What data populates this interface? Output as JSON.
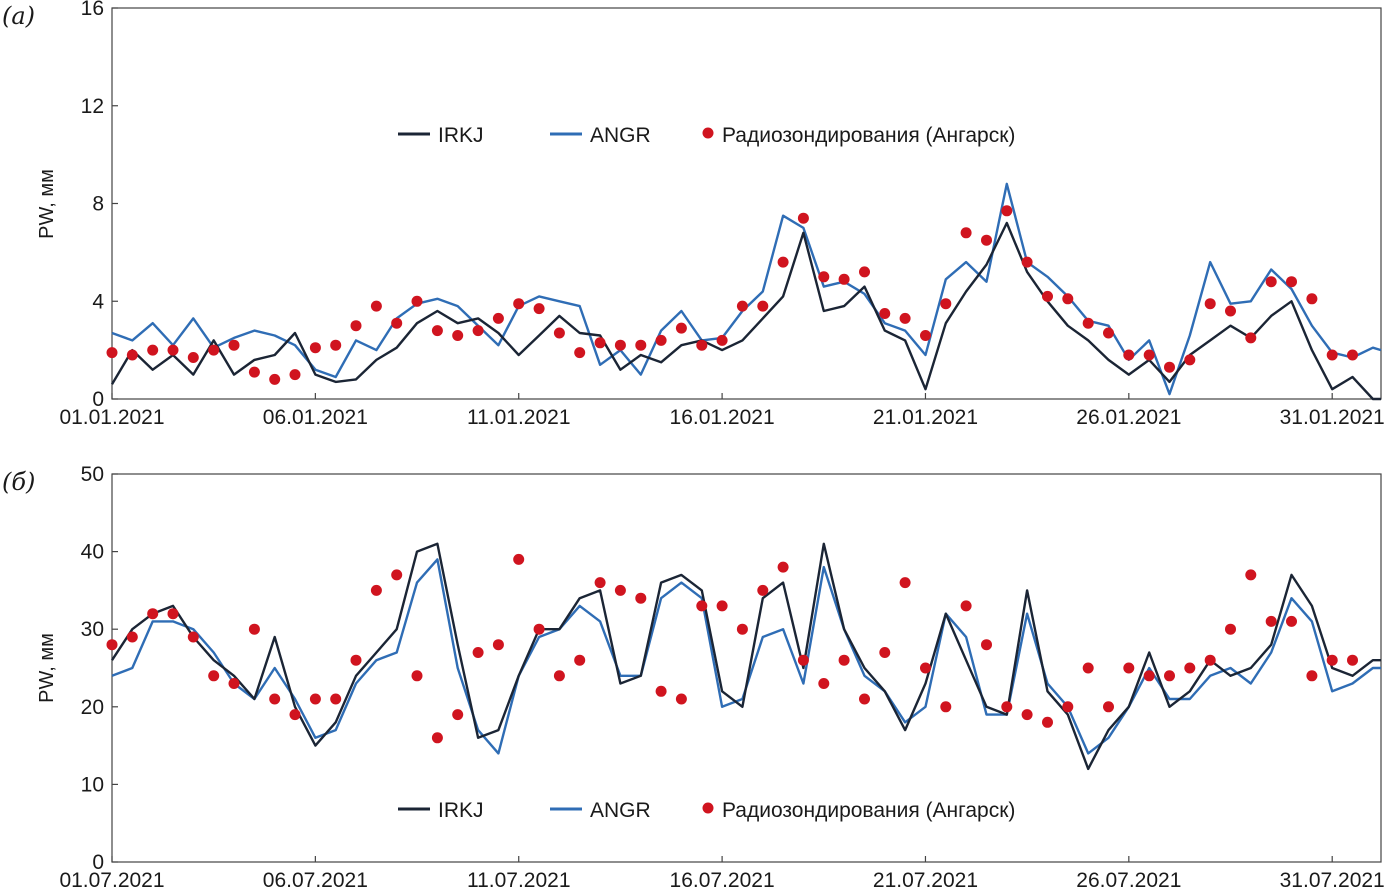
{
  "figure": {
    "colors": {
      "irkj": "#1b2535",
      "angr": "#2f6db5",
      "radiosonde": "#d0141f",
      "axis": "#444444"
    }
  },
  "chart_data": [
    {
      "type": "line",
      "panel_label": "(а)",
      "ylabel": "PW, мм",
      "xlabel": "",
      "ylim": [
        0,
        16
      ],
      "yticks": [
        0,
        4,
        8,
        12,
        16
      ],
      "ytick_labels": [
        "0",
        "4",
        "8",
        "12",
        "16"
      ],
      "xlim": [
        1,
        32.2
      ],
      "xticks": [
        1,
        6,
        11,
        16,
        21,
        26,
        31
      ],
      "xtick_labels": [
        "01.01.2021",
        "06.01.2021",
        "11.01.2021",
        "16.01.2021",
        "21.01.2021",
        "26.01.2021",
        "31.01.2021"
      ],
      "grid": false,
      "legend": {
        "position": "upper-center",
        "entries": [
          {
            "label": "IRKJ",
            "kind": "line"
          },
          {
            "label": "ANGR",
            "kind": "line"
          },
          {
            "label": "Радиозондирования (Ангарск)",
            "kind": "marker"
          }
        ]
      },
      "series": [
        {
          "name": "IRKJ",
          "kind": "line",
          "x": [
            1.0,
            1.5,
            2.0,
            2.5,
            3.0,
            3.5,
            4.0,
            4.5,
            5.0,
            5.5,
            6.0,
            6.5,
            7.0,
            7.5,
            8.0,
            8.5,
            9.0,
            9.5,
            10.0,
            10.5,
            11.0,
            11.5,
            12.0,
            12.5,
            13.0,
            13.5,
            14.0,
            14.5,
            15.0,
            15.5,
            16.0,
            16.5,
            17.0,
            17.5,
            18.0,
            18.5,
            19.0,
            19.5,
            20.0,
            20.5,
            21.0,
            21.5,
            22.0,
            22.5,
            23.0,
            23.5,
            24.0,
            24.5,
            25.0,
            25.5,
            26.0,
            26.5,
            27.0,
            27.5,
            28.0,
            28.5,
            29.0,
            29.5,
            30.0,
            30.5,
            31.0,
            31.5,
            32.0,
            32.2
          ],
          "values": [
            0.6,
            2.0,
            1.2,
            1.8,
            1.0,
            2.4,
            1.0,
            1.6,
            1.8,
            2.7,
            1.0,
            0.7,
            0.8,
            1.6,
            2.1,
            3.1,
            3.6,
            3.1,
            3.3,
            2.7,
            1.8,
            2.6,
            3.4,
            2.7,
            2.6,
            1.2,
            1.8,
            1.5,
            2.2,
            2.4,
            2.0,
            2.4,
            3.3,
            4.2,
            6.8,
            3.6,
            3.8,
            4.6,
            2.8,
            2.4,
            0.4,
            3.1,
            4.4,
            5.5,
            7.2,
            5.2,
            4.0,
            3.0,
            2.4,
            1.6,
            1.0,
            1.6,
            0.7,
            1.8,
            2.4,
            3.0,
            2.5,
            3.4,
            4.0,
            2.0,
            0.4,
            0.9,
            0.0,
            0.0
          ]
        },
        {
          "name": "ANGR",
          "kind": "line",
          "x": [
            1.0,
            1.5,
            2.0,
            2.5,
            3.0,
            3.5,
            4.0,
            4.5,
            5.0,
            5.5,
            6.0,
            6.5,
            7.0,
            7.5,
            8.0,
            8.5,
            9.0,
            9.5,
            10.0,
            10.5,
            11.0,
            11.5,
            12.0,
            12.5,
            13.0,
            13.5,
            14.0,
            14.5,
            15.0,
            15.5,
            16.0,
            16.5,
            17.0,
            17.5,
            18.0,
            18.5,
            19.0,
            19.5,
            20.0,
            20.5,
            21.0,
            21.5,
            22.0,
            22.5,
            23.0,
            23.5,
            24.0,
            24.5,
            25.0,
            25.5,
            26.0,
            26.5,
            27.0,
            27.5,
            28.0,
            28.5,
            29.0,
            29.5,
            30.0,
            30.5,
            31.0,
            31.5,
            32.0,
            32.2
          ],
          "values": [
            2.7,
            2.4,
            3.1,
            2.2,
            3.3,
            2.1,
            2.5,
            2.8,
            2.6,
            2.2,
            1.2,
            0.9,
            2.4,
            2.0,
            3.3,
            3.9,
            4.1,
            3.8,
            3.0,
            2.2,
            3.8,
            4.2,
            4.0,
            3.8,
            1.4,
            2.0,
            1.0,
            2.8,
            3.6,
            2.4,
            2.5,
            3.6,
            4.4,
            7.5,
            7.0,
            4.6,
            4.8,
            4.3,
            3.1,
            2.8,
            1.8,
            4.9,
            5.6,
            4.8,
            8.8,
            5.6,
            5.0,
            4.2,
            3.2,
            3.0,
            1.6,
            2.4,
            0.2,
            2.6,
            5.6,
            3.9,
            4.0,
            5.3,
            4.5,
            3.0,
            1.9,
            1.7,
            2.1,
            2.0
          ]
        },
        {
          "name": "Радиозондирования (Ангарск)",
          "kind": "scatter",
          "x": [
            1.0,
            1.5,
            2.0,
            2.5,
            3.0,
            3.5,
            4.0,
            4.5,
            5.0,
            5.5,
            6.0,
            6.5,
            7.0,
            7.5,
            8.0,
            8.5,
            9.0,
            9.5,
            10.0,
            10.5,
            11.0,
            11.5,
            12.0,
            12.5,
            13.0,
            13.5,
            14.0,
            14.5,
            15.0,
            15.5,
            16.0,
            16.5,
            17.0,
            17.5,
            18.0,
            18.5,
            19.0,
            19.5,
            20.0,
            20.5,
            21.0,
            21.5,
            22.0,
            22.5,
            23.0,
            23.5,
            24.0,
            24.5,
            25.0,
            25.5,
            26.0,
            26.5,
            27.0,
            27.5,
            28.0,
            28.5,
            29.0,
            29.5,
            30.0,
            30.5,
            31.0,
            31.5
          ],
          "values": [
            1.9,
            1.8,
            2.0,
            2.0,
            1.7,
            2.0,
            2.2,
            1.1,
            0.8,
            1.0,
            2.1,
            2.2,
            3.0,
            3.8,
            3.1,
            4.0,
            2.8,
            2.6,
            2.8,
            3.3,
            3.9,
            3.7,
            2.7,
            1.9,
            2.3,
            2.2,
            2.2,
            2.4,
            2.9,
            2.2,
            2.4,
            3.8,
            3.8,
            5.6,
            7.4,
            5.0,
            4.9,
            5.2,
            3.5,
            3.3,
            2.6,
            3.9,
            6.8,
            6.5,
            7.7,
            5.6,
            4.2,
            4.1,
            3.1,
            2.7,
            1.8,
            1.8,
            1.3,
            1.6,
            3.9,
            3.6,
            2.5,
            4.8,
            4.8,
            4.1,
            1.8,
            1.8
          ]
        }
      ]
    },
    {
      "type": "line",
      "panel_label": "(б)",
      "ylabel": "PW, мм",
      "xlabel": "",
      "ylim": [
        0,
        50
      ],
      "yticks": [
        0,
        10,
        20,
        30,
        40,
        50
      ],
      "ytick_labels": [
        "0",
        "10",
        "20",
        "30",
        "40",
        "50"
      ],
      "xlim": [
        1,
        32.2
      ],
      "xticks": [
        1,
        6,
        11,
        16,
        21,
        26,
        31
      ],
      "xtick_labels": [
        "01.07.2021",
        "06.07.2021",
        "11.07.2021",
        "16.07.2021",
        "21.07.2021",
        "26.07.2021",
        "31.07.2021"
      ],
      "grid": false,
      "legend": {
        "position": "lower-center",
        "entries": [
          {
            "label": "IRKJ",
            "kind": "line"
          },
          {
            "label": "ANGR",
            "kind": "line"
          },
          {
            "label": "Радиозондирования (Ангарск)",
            "kind": "marker"
          }
        ]
      },
      "series": [
        {
          "name": "IRKJ",
          "kind": "line",
          "x": [
            1.0,
            1.5,
            2.0,
            2.5,
            3.0,
            3.5,
            4.0,
            4.5,
            5.0,
            5.5,
            6.0,
            6.5,
            7.0,
            7.5,
            8.0,
            8.5,
            9.0,
            9.5,
            10.0,
            10.5,
            11.0,
            11.5,
            12.0,
            12.5,
            13.0,
            13.5,
            14.0,
            14.5,
            15.0,
            15.5,
            16.0,
            16.5,
            17.0,
            17.5,
            18.0,
            18.5,
            19.0,
            19.5,
            20.0,
            20.5,
            21.0,
            21.5,
            22.0,
            22.5,
            23.0,
            23.5,
            24.0,
            24.5,
            25.0,
            25.5,
            26.0,
            26.5,
            27.0,
            27.5,
            28.0,
            28.5,
            29.0,
            29.5,
            30.0,
            30.5,
            31.0,
            31.5,
            32.0,
            32.2
          ],
          "values": [
            26,
            30,
            32,
            33,
            29,
            26,
            24,
            21,
            29,
            20,
            15,
            18,
            24,
            27,
            30,
            40,
            41,
            28,
            16,
            17,
            24,
            30,
            30,
            34,
            35,
            23,
            24,
            36,
            37,
            35,
            22,
            20,
            34,
            36,
            25,
            41,
            30,
            25,
            22,
            17,
            23,
            32,
            26,
            20,
            19,
            35,
            22,
            19,
            12,
            17,
            20,
            27,
            20,
            22,
            26,
            24,
            25,
            28,
            37,
            33,
            25,
            24,
            26,
            26
          ]
        },
        {
          "name": "ANGR",
          "kind": "line",
          "x": [
            1.0,
            1.5,
            2.0,
            2.5,
            3.0,
            3.5,
            4.0,
            4.5,
            5.0,
            5.5,
            6.0,
            6.5,
            7.0,
            7.5,
            8.0,
            8.5,
            9.0,
            9.5,
            10.0,
            10.5,
            11.0,
            11.5,
            12.0,
            12.5,
            13.0,
            13.5,
            14.0,
            14.5,
            15.0,
            15.5,
            16.0,
            16.5,
            17.0,
            17.5,
            18.0,
            18.5,
            19.0,
            19.5,
            20.0,
            20.5,
            21.0,
            21.5,
            22.0,
            22.5,
            23.0,
            23.5,
            24.0,
            24.5,
            25.0,
            25.5,
            26.0,
            26.5,
            27.0,
            27.5,
            28.0,
            28.5,
            29.0,
            29.5,
            30.0,
            30.5,
            31.0,
            31.5,
            32.0,
            32.2
          ],
          "values": [
            24,
            25,
            31,
            31,
            30,
            27,
            23,
            21,
            25,
            21,
            16,
            17,
            23,
            26,
            27,
            36,
            39,
            25,
            17,
            14,
            24,
            29,
            30,
            33,
            31,
            24,
            24,
            34,
            36,
            34,
            20,
            21,
            29,
            30,
            23,
            38,
            30,
            24,
            22,
            18,
            20,
            32,
            29,
            19,
            19,
            32,
            23,
            20,
            14,
            16,
            20,
            25,
            21,
            21,
            24,
            25,
            23,
            27,
            34,
            31,
            22,
            23,
            25,
            25
          ]
        },
        {
          "name": "Радиозондирования (Ангарск)",
          "kind": "scatter",
          "x": [
            1.0,
            1.5,
            2.0,
            2.5,
            3.0,
            3.5,
            4.0,
            4.5,
            5.0,
            5.5,
            6.0,
            6.5,
            7.0,
            7.5,
            8.0,
            8.5,
            9.0,
            9.5,
            10.0,
            10.5,
            11.0,
            11.5,
            12.0,
            12.5,
            13.0,
            13.5,
            14.0,
            14.5,
            15.0,
            15.5,
            16.0,
            16.5,
            17.0,
            17.5,
            18.0,
            18.5,
            19.0,
            19.5,
            20.0,
            20.5,
            21.0,
            21.5,
            22.0,
            22.5,
            23.0,
            23.5,
            24.0,
            24.5,
            25.0,
            25.5,
            26.0,
            26.5,
            27.0,
            27.5,
            28.0,
            28.5,
            29.0,
            29.5,
            30.0,
            30.5,
            31.0,
            31.5
          ],
          "values": [
            28,
            29,
            32,
            32,
            29,
            24,
            23,
            30,
            21,
            19,
            21,
            21,
            26,
            35,
            37,
            24,
            16,
            19,
            27,
            28,
            39,
            30,
            24,
            26,
            36,
            35,
            34,
            22,
            21,
            33,
            33,
            30,
            35,
            38,
            26,
            23,
            26,
            21,
            27,
            36,
            25,
            20,
            33,
            28,
            20,
            19,
            18,
            20,
            25,
            20,
            25,
            24,
            24,
            25,
            26,
            30,
            37,
            31,
            31,
            24,
            26,
            26
          ]
        }
      ]
    }
  ]
}
